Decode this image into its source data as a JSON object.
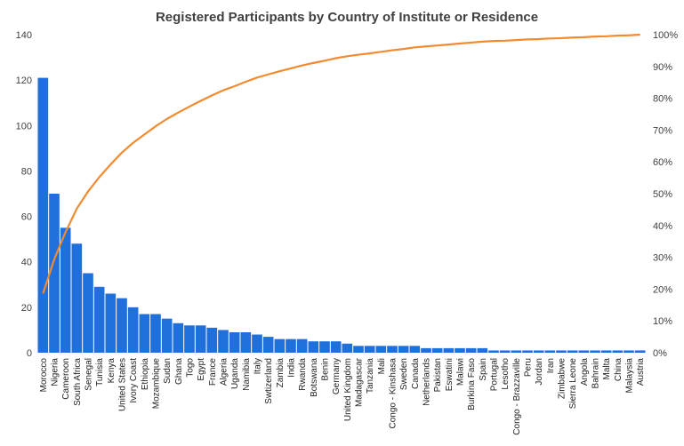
{
  "chart_data": {
    "type": "bar",
    "title": "Registered Participants by Country of Institute or Residence",
    "categories": [
      "Morocco",
      "Nigeria",
      "Cameroon",
      "South Africa",
      "Senegal",
      "Tunisia",
      "Kenya",
      "United States",
      "Ivory Coast",
      "Ethiopia",
      "Mozambique",
      "Sudan",
      "Ghana",
      "Togo",
      "Egypt",
      "France",
      "Algeria",
      "Uganda",
      "Namibia",
      "Italy",
      "Swtizerland",
      "Zambia",
      "India",
      "Rwanda",
      "Botswana",
      "Benin",
      "Germany",
      "United Kingdom",
      "Madagascar",
      "Tanzania",
      "Mali",
      "Congo - Kinshasa",
      "Sweden",
      "Canada",
      "Netherlands",
      "Pakistan",
      "Eswatini",
      "Malawi",
      "Burkina Faso",
      "Spain",
      "Portugal",
      "Lesotho",
      "Congo - Brazzaville",
      "Peru",
      "Jordan",
      "Iran",
      "Zimbabwe",
      "Sierra Leone",
      "Angola",
      "Bahrain",
      "Malta",
      "China",
      "Malaysia",
      "Austria"
    ],
    "series": [
      {
        "type": "bar",
        "values": [
          121,
          70,
          55,
          48,
          35,
          29,
          26,
          24,
          20,
          17,
          17,
          15,
          13,
          12,
          12,
          11,
          10,
          9,
          9,
          8,
          7,
          6,
          6,
          6,
          5,
          5,
          5,
          4,
          3,
          3,
          3,
          3,
          3,
          3,
          2,
          2,
          2,
          2,
          2,
          2,
          1,
          1,
          1,
          1,
          1,
          1,
          1,
          1,
          1,
          1,
          1,
          1,
          1,
          1
        ]
      },
      {
        "type": "line",
        "axis": "right",
        "values": [
          0.186,
          0.294,
          0.379,
          0.453,
          0.507,
          0.552,
          0.592,
          0.629,
          0.66,
          0.686,
          0.712,
          0.735,
          0.755,
          0.774,
          0.792,
          0.809,
          0.825,
          0.838,
          0.852,
          0.865,
          0.875,
          0.885,
          0.894,
          0.903,
          0.911,
          0.918,
          0.926,
          0.932,
          0.937,
          0.941,
          0.946,
          0.951,
          0.955,
          0.96,
          0.963,
          0.966,
          0.969,
          0.972,
          0.975,
          0.978,
          0.98,
          0.981,
          0.983,
          0.985,
          0.986,
          0.988,
          0.989,
          0.991,
          0.992,
          0.994,
          0.995,
          0.997,
          0.998,
          1.0
        ]
      }
    ],
    "ylim": [
      0,
      140
    ],
    "yticks": [
      0,
      20,
      40,
      60,
      80,
      100,
      120,
      140
    ],
    "y2lim": [
      0,
      1
    ],
    "y2ticks": [
      "0%",
      "10%",
      "20%",
      "30%",
      "40%",
      "50%",
      "60%",
      "70%",
      "80%",
      "90%",
      "100%"
    ],
    "bar_color": "#1f6fdc",
    "line_color": "#f28a30",
    "grid": false
  }
}
